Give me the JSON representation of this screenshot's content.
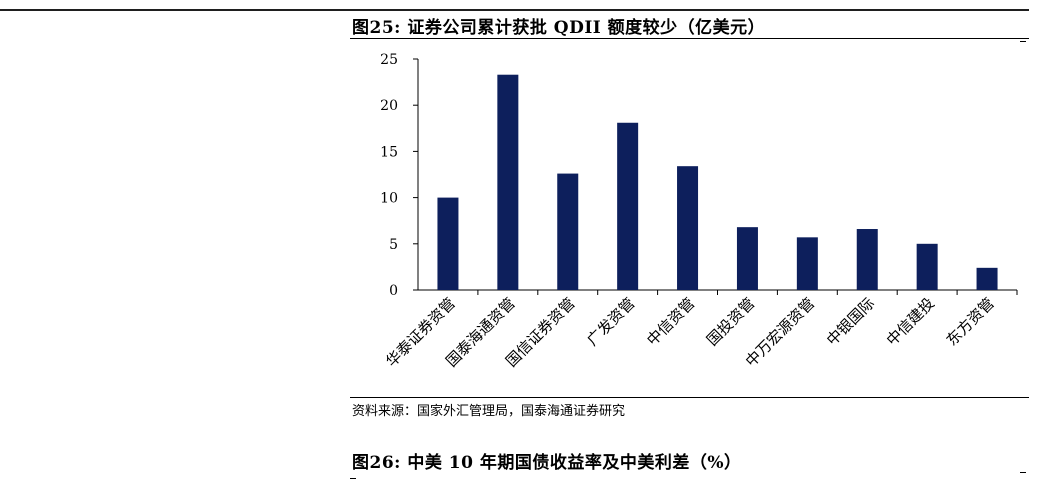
{
  "figure1": {
    "title": "图25:  证券公司累计获批 QDII 额度较少（亿美元）"
  },
  "figure2": {
    "title": "图26:  中美 10 年期国债收益率及中美利差（%）"
  },
  "source_note": "资料来源：国家外汇管理局，国泰海通证券研究",
  "colors": {
    "bar": "#0d1f5c",
    "axis": "#000000"
  },
  "chart_data": {
    "type": "bar",
    "title": "",
    "xlabel": "",
    "ylabel": "",
    "categories": [
      "华泰证券资管",
      "国泰海通资管",
      "国信证券资管",
      "广发资管",
      "中信资管",
      "国投资管",
      "中万宏源资管",
      "中银国际",
      "中信建投",
      "东方资管"
    ],
    "values": [
      10.0,
      23.3,
      12.6,
      18.1,
      13.4,
      6.8,
      5.7,
      6.6,
      5.0,
      2.4
    ],
    "ylim": [
      0,
      25
    ],
    "yticks": [
      "0",
      "5",
      "10",
      "15",
      "20",
      "25"
    ],
    "grid": false,
    "legend": "none"
  }
}
